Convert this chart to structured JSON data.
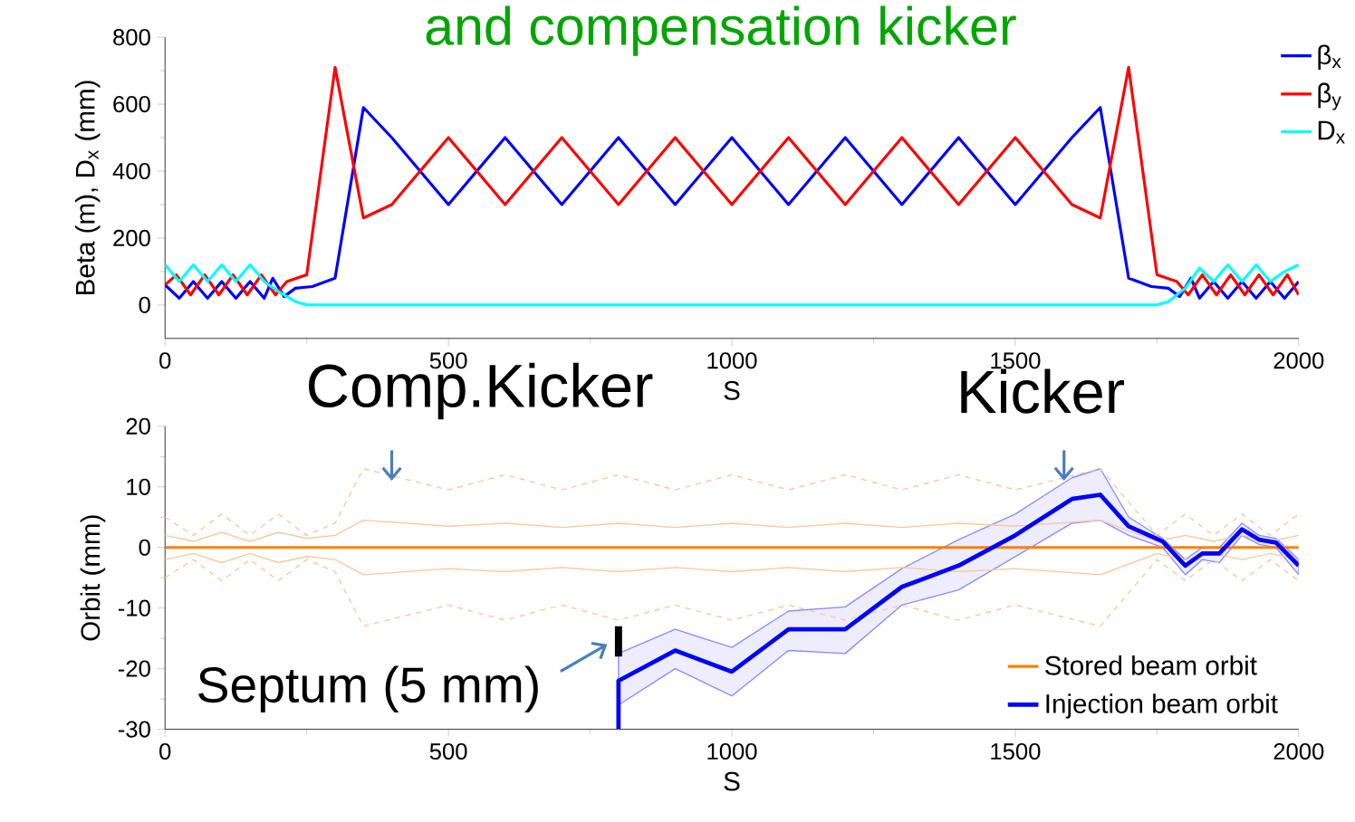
{
  "chart_data": [
    {
      "type": "line",
      "title": "and compensation kicker",
      "xlabel": "S",
      "ylabel": "Beta (m), D$_{x}$ (mm)",
      "xlim": [
        0,
        2000
      ],
      "ylim": [
        -100,
        800
      ],
      "xticks": [
        0,
        500,
        1000,
        1500,
        2000
      ],
      "yticks": [
        0,
        200,
        400,
        600,
        800
      ],
      "legend": "top right",
      "series": [
        {
          "name": "β$_{x}$",
          "color": "#0000ff",
          "x": [
            0,
            25,
            50,
            75,
            100,
            125,
            150,
            175,
            190,
            210,
            230,
            260,
            300,
            350,
            400,
            500,
            600,
            700,
            800,
            900,
            1000,
            1100,
            1200,
            1300,
            1400,
            1500,
            1600,
            1650,
            1700,
            1740,
            1770,
            1790,
            1810,
            1825,
            1850,
            1875,
            1900,
            1925,
            1950,
            1975,
            2000
          ],
          "values": [
            60,
            20,
            70,
            20,
            70,
            20,
            70,
            20,
            80,
            25,
            50,
            55,
            80,
            590,
            500,
            300,
            500,
            300,
            500,
            300,
            500,
            300,
            500,
            300,
            500,
            300,
            500,
            590,
            80,
            55,
            50,
            25,
            80,
            20,
            70,
            20,
            70,
            20,
            70,
            20,
            70
          ]
        },
        {
          "name": "β$_{y}$",
          "color": "#ff0000",
          "x": [
            0,
            20,
            45,
            70,
            95,
            120,
            145,
            170,
            195,
            215,
            250,
            300,
            350,
            400,
            500,
            600,
            700,
            800,
            900,
            1000,
            1100,
            1200,
            1300,
            1400,
            1500,
            1600,
            1650,
            1700,
            1750,
            1785,
            1805,
            1830,
            1855,
            1880,
            1905,
            1930,
            1955,
            1980,
            2000
          ],
          "values": [
            60,
            90,
            30,
            90,
            30,
            90,
            30,
            90,
            30,
            70,
            90,
            710,
            260,
            300,
            500,
            300,
            500,
            300,
            500,
            300,
            500,
            300,
            500,
            300,
            500,
            300,
            260,
            710,
            90,
            70,
            30,
            90,
            30,
            90,
            30,
            90,
            30,
            90,
            30
          ]
        },
        {
          "name": "D$_{x}$",
          "color": "#00ffff",
          "x": [
            0,
            25,
            50,
            75,
            100,
            125,
            150,
            175,
            200,
            230,
            250,
            1750,
            1770,
            1800,
            1825,
            1850,
            1875,
            1900,
            1925,
            1950,
            1975,
            2000
          ],
          "values": [
            120,
            70,
            120,
            70,
            120,
            70,
            120,
            70,
            40,
            10,
            0,
            0,
            10,
            50,
            110,
            70,
            120,
            70,
            120,
            70,
            100,
            120
          ]
        }
      ]
    },
    {
      "type": "line",
      "xlabel": "S",
      "ylabel": "Orbit (mm)",
      "xlim": [
        0,
        2000
      ],
      "ylim": [
        -30,
        20
      ],
      "xticks": [
        0,
        500,
        1000,
        1500,
        2000
      ],
      "yticks": [
        -30,
        -20,
        -10,
        0,
        10,
        20
      ],
      "legend": "bottom right",
      "annotations": [
        {
          "text": "Comp.Kicker",
          "x": 400,
          "y": 11
        },
        {
          "text": "Kicker",
          "x": 1586,
          "y": 11
        },
        {
          "text": "Septum (5 mm)",
          "x": 780,
          "y": -16
        }
      ],
      "series": [
        {
          "color": "#fcc89b",
          "x": [
            0,
            50,
            100,
            150,
            200,
            250,
            300,
            350,
            500,
            600,
            700,
            800,
            900,
            1000,
            1100,
            1200,
            1300,
            1400,
            1500,
            1650,
            1750,
            1800,
            1850,
            1900,
            1950,
            2000
          ],
          "values": [
            2,
            1,
            2.5,
            1,
            2.5,
            1.5,
            2,
            4.5,
            3.5,
            4,
            3.3,
            4,
            3.3,
            4,
            3.3,
            4,
            3.3,
            4,
            3.5,
            4.5,
            1,
            2,
            1,
            2,
            1,
            2
          ]
        },
        {
          "color": "#fcc89b",
          "x": [
            0,
            50,
            100,
            150,
            200,
            250,
            300,
            350,
            500,
            600,
            700,
            800,
            900,
            1000,
            1100,
            1200,
            1300,
            1400,
            1500,
            1650,
            1750,
            1800,
            1850,
            1900,
            1950,
            2000
          ],
          "values": [
            -2,
            -1,
            -2.5,
            -1,
            -2.5,
            -1.5,
            -2,
            -4.5,
            -3.5,
            -4,
            -3.3,
            -4,
            -3.3,
            -4,
            -3.3,
            -4,
            -3.3,
            -4,
            -3.5,
            -4.5,
            -1,
            -2,
            -1,
            -2,
            -1,
            -2
          ]
        },
        {
          "color": "#fcc89b",
          "line_style": "dashed",
          "x": [
            0,
            50,
            100,
            150,
            200,
            250,
            300,
            350,
            500,
            600,
            700,
            800,
            900,
            1000,
            1100,
            1200,
            1300,
            1400,
            1500,
            1650,
            1750,
            1800,
            1850,
            1900,
            1950,
            2000
          ],
          "values": [
            5,
            2,
            5.5,
            2,
            5.5,
            2,
            4,
            13,
            9.5,
            12,
            9.5,
            12,
            9.5,
            12,
            9.5,
            12,
            9.5,
            12,
            9.5,
            13,
            2,
            5.5,
            2,
            5.5,
            2,
            5.5
          ]
        },
        {
          "color": "#fcc89b",
          "line_style": "dashed",
          "x": [
            0,
            50,
            100,
            150,
            200,
            250,
            300,
            350,
            500,
            600,
            700,
            800,
            900,
            1000,
            1100,
            1200,
            1300,
            1400,
            1500,
            1650,
            1750,
            1800,
            1850,
            1900,
            1950,
            2000
          ],
          "values": [
            -5,
            -2,
            -5.5,
            -2,
            -5.5,
            -2,
            -4,
            -13,
            -9.5,
            -12,
            -9.5,
            -12,
            -9.5,
            -12,
            -9.5,
            -12,
            -9.5,
            -12,
            -9.5,
            -13,
            -2,
            -5.5,
            -2,
            -5.5,
            -2,
            -5.5
          ]
        },
        {
          "name": "Stored beam orbit",
          "color": "#ff8000",
          "x": [
            0,
            2000
          ],
          "values": [
            0,
            0
          ]
        },
        {
          "name": "Injection beam orbit",
          "color": "#0000ff",
          "x": [
            800,
            800,
            900,
            1000,
            1100,
            1200,
            1300,
            1400,
            1500,
            1600,
            1650,
            1700,
            1760,
            1800,
            1830,
            1860,
            1900,
            1930,
            1960,
            2000
          ],
          "values": [
            -30,
            -22,
            -17,
            -20.5,
            -13.5,
            -13.5,
            -6.5,
            -3,
            2,
            8,
            8.7,
            3.5,
            1,
            -3,
            -1,
            -1,
            3,
            1.3,
            0.8,
            -3
          ],
          "lower": [
            -30,
            -26,
            -20,
            -24.5,
            -17,
            -17.5,
            -9.5,
            -7,
            -1.5,
            4,
            4.5,
            2,
            0,
            -4.5,
            -2,
            -2.5,
            2,
            0.5,
            0,
            -4.5
          ],
          "upper": [
            -30,
            -17.5,
            -13.5,
            -16.5,
            -10.5,
            -9.8,
            -3.5,
            1.3,
            5.5,
            11.5,
            13,
            5,
            1.5,
            -2,
            0,
            0,
            4,
            2,
            1.5,
            -2
          ]
        },
        {
          "color": "#000000",
          "x": [
            800,
            800
          ],
          "values": [
            -13,
            -18
          ]
        }
      ]
    }
  ]
}
